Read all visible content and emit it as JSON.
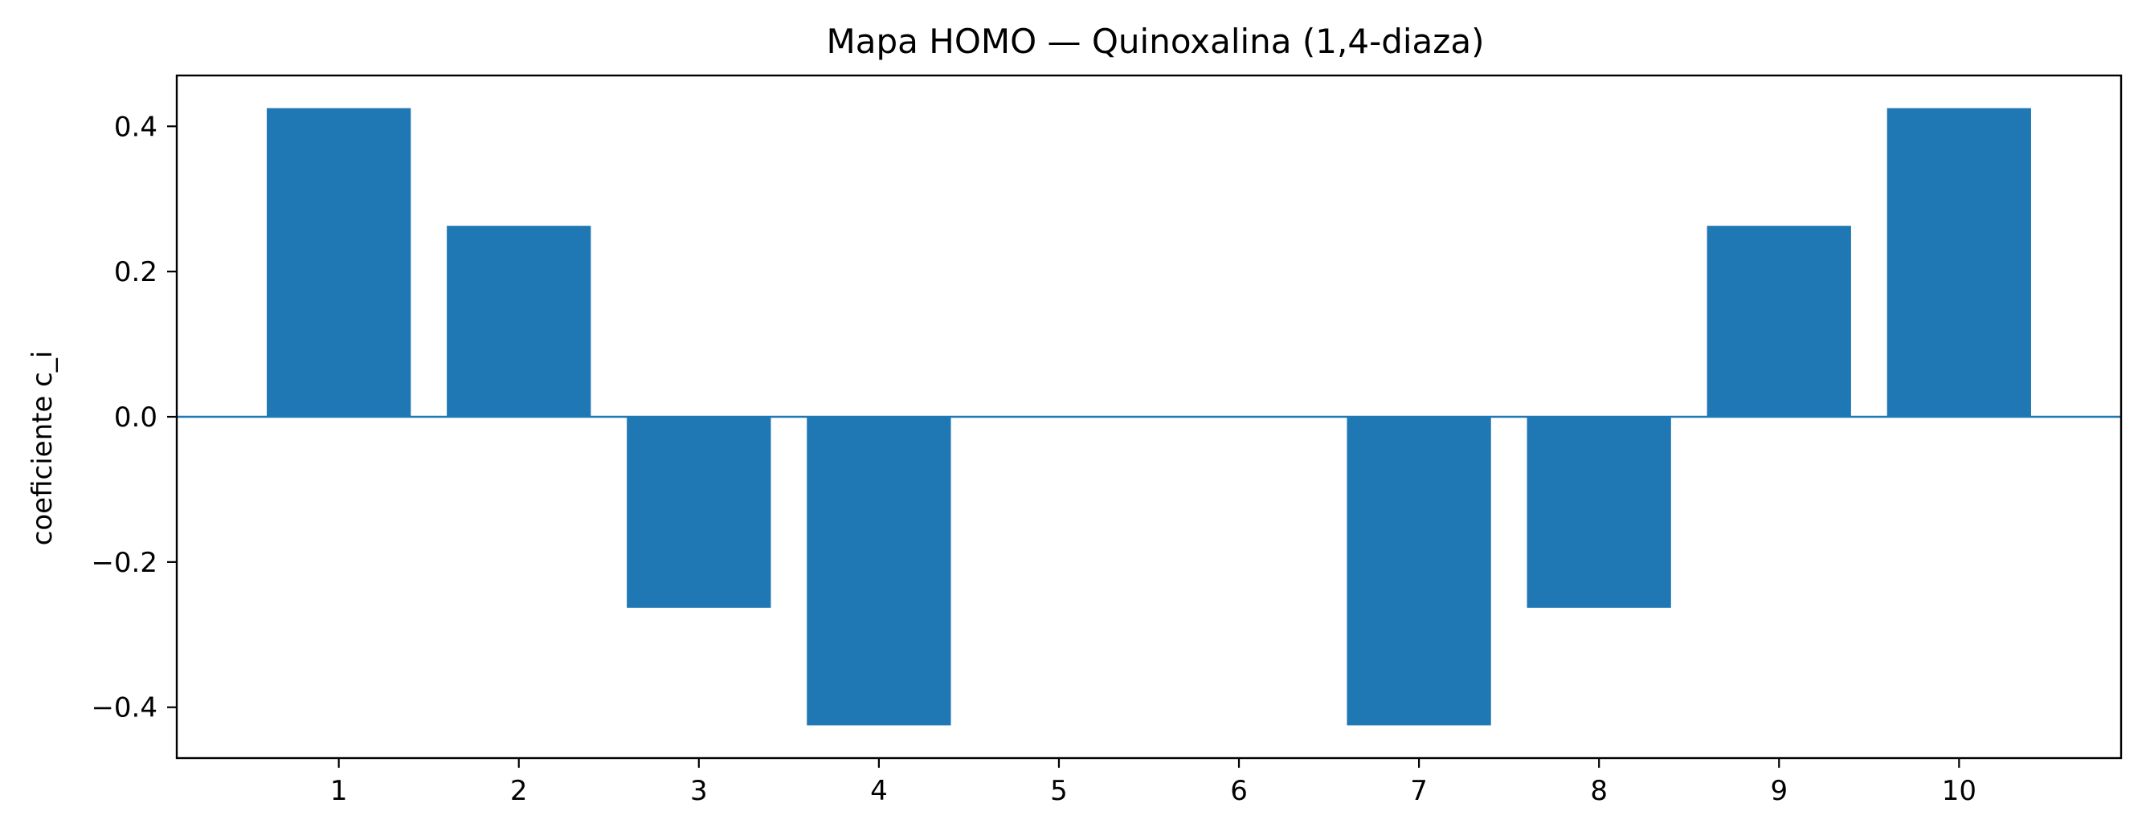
{
  "chart_data": {
    "type": "bar",
    "title": "Mapa HOMO — Quinoxalina (1,4-diaza)",
    "xlabel": "",
    "ylabel": "coeficiente c_i",
    "categories": [
      "1",
      "2",
      "3",
      "4",
      "5",
      "6",
      "7",
      "8",
      "9",
      "10"
    ],
    "values": [
      0.425,
      0.263,
      -0.263,
      -0.425,
      0.0,
      0.0,
      -0.425,
      -0.263,
      0.263,
      0.425
    ],
    "xlim": [
      0.1,
      10.9
    ],
    "ylim": [
      -0.47,
      0.47
    ],
    "yticks": [
      -0.4,
      -0.2,
      0.0,
      0.2,
      0.4
    ],
    "ytick_labels": [
      "−0.4",
      "−0.2",
      "0.0",
      "0.2",
      "0.4"
    ],
    "bar_color": "#1f77b4",
    "baseline_color": "#1f77b4",
    "grid": false,
    "legend": "none"
  }
}
